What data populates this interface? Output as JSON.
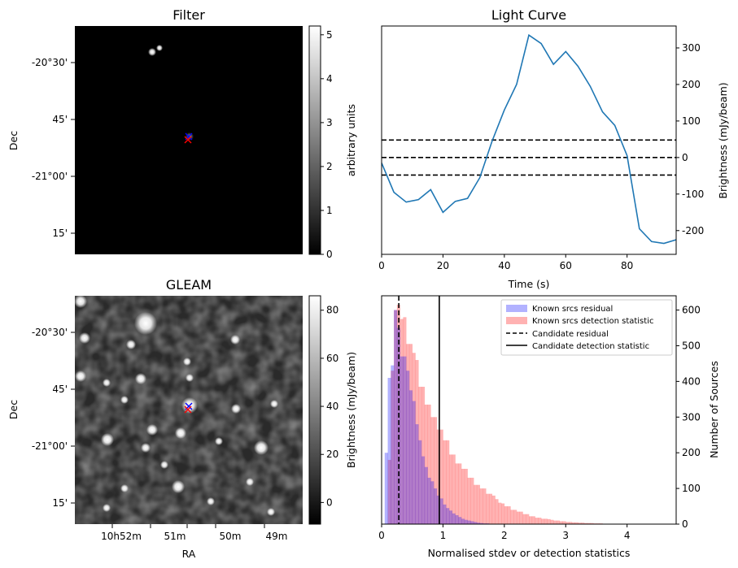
{
  "panels": {
    "filter": {
      "title": "Filter",
      "ylabel": "Dec",
      "yticks": [
        "-20°30'",
        "45'",
        "-21°00'",
        "15'"
      ],
      "colorbar": {
        "label": "arbitrary units",
        "ticks": [
          "0",
          "1",
          "2",
          "3",
          "4",
          "5"
        ],
        "range": [
          0,
          5.2
        ]
      }
    },
    "gleam": {
      "title": "GLEAM",
      "ylabel": "Dec",
      "xlabel": "RA",
      "yticks": [
        "-20°30'",
        "45'",
        "-21°00'",
        "15'"
      ],
      "xticks": [
        "10h52m",
        "51m",
        "50m",
        "49m"
      ],
      "colorbar": {
        "label": "Brightness (mJy/beam)",
        "ticks": [
          "0",
          "20",
          "40",
          "60",
          "80"
        ],
        "range": [
          -9,
          86
        ]
      }
    }
  },
  "chart_data": [
    {
      "type": "line",
      "title": "Light Curve",
      "xlabel": "Time (s)",
      "ylabel": "Brightness (mJy/beam)",
      "xlim": [
        0,
        96
      ],
      "ylim": [
        -265,
        360
      ],
      "xticks": [
        0,
        20,
        40,
        60,
        80
      ],
      "yticks": [
        -200,
        -100,
        0,
        100,
        200,
        300
      ],
      "x": [
        0,
        4,
        8,
        12,
        16,
        20,
        24,
        28,
        32,
        36,
        40,
        44,
        48,
        52,
        56,
        60,
        64,
        68,
        72,
        76,
        80,
        84,
        88,
        92,
        96
      ],
      "y": [
        -15,
        -95,
        -122,
        -115,
        -88,
        -150,
        -120,
        -112,
        -55,
        45,
        130,
        200,
        335,
        312,
        255,
        290,
        250,
        195,
        125,
        88,
        5,
        -195,
        -230,
        -235,
        -225
      ],
      "hlines": [
        48,
        0,
        -48
      ],
      "color": "#1f77b4"
    },
    {
      "type": "histogram",
      "xlabel": "Normalised stdev or detection statistics",
      "ylabel": "Number of Sources",
      "xlim": [
        0,
        4.8
      ],
      "ylim": [
        0,
        640
      ],
      "xticks": [
        0,
        1,
        2,
        3,
        4
      ],
      "yticks": [
        0,
        100,
        200,
        300,
        400,
        500,
        600
      ],
      "bin_width": 0.05,
      "series": [
        {
          "name": "Known srcs residual",
          "color": "#0000ff",
          "alpha": 0.3,
          "start": 0.0,
          "counts": [
            0,
            200,
            410,
            445,
            600,
            550,
            470,
            470,
            430,
            375,
            345,
            280,
            235,
            190,
            160,
            130,
            120,
            100,
            80,
            72,
            55,
            45,
            38,
            30,
            25,
            20,
            15,
            12,
            10,
            8,
            6,
            4,
            3,
            2,
            2,
            1,
            1
          ]
        },
        {
          "name": "Known srcs detection statistic",
          "color": "#ff0000",
          "alpha": 0.3,
          "start": 0.0,
          "counts": [
            0,
            0,
            180,
            430,
            600,
            615,
            575,
            580,
            505,
            505,
            480,
            460,
            385,
            385,
            335,
            335,
            300,
            300,
            265,
            265,
            235,
            235,
            195,
            195,
            170,
            170,
            155,
            155,
            130,
            130,
            110,
            110,
            100,
            100,
            85,
            85,
            80,
            70,
            60,
            58,
            50,
            50,
            40,
            40,
            35,
            35,
            28,
            28,
            22,
            22,
            18,
            18,
            15,
            15,
            14,
            12,
            10,
            10,
            8,
            8,
            6,
            6,
            5,
            5,
            4,
            4,
            3,
            3,
            3,
            2,
            2,
            2,
            1,
            1,
            1,
            1,
            1,
            1,
            1,
            1,
            1,
            1,
            1,
            1,
            1,
            1,
            1,
            1,
            1,
            1,
            1,
            1
          ]
        }
      ],
      "vlines": [
        {
          "name": "Candidate residual",
          "x": 0.28,
          "style": "dashed"
        },
        {
          "name": "Candidate detection statistic",
          "x": 0.94,
          "style": "solid"
        }
      ],
      "legend": "top-right"
    }
  ]
}
